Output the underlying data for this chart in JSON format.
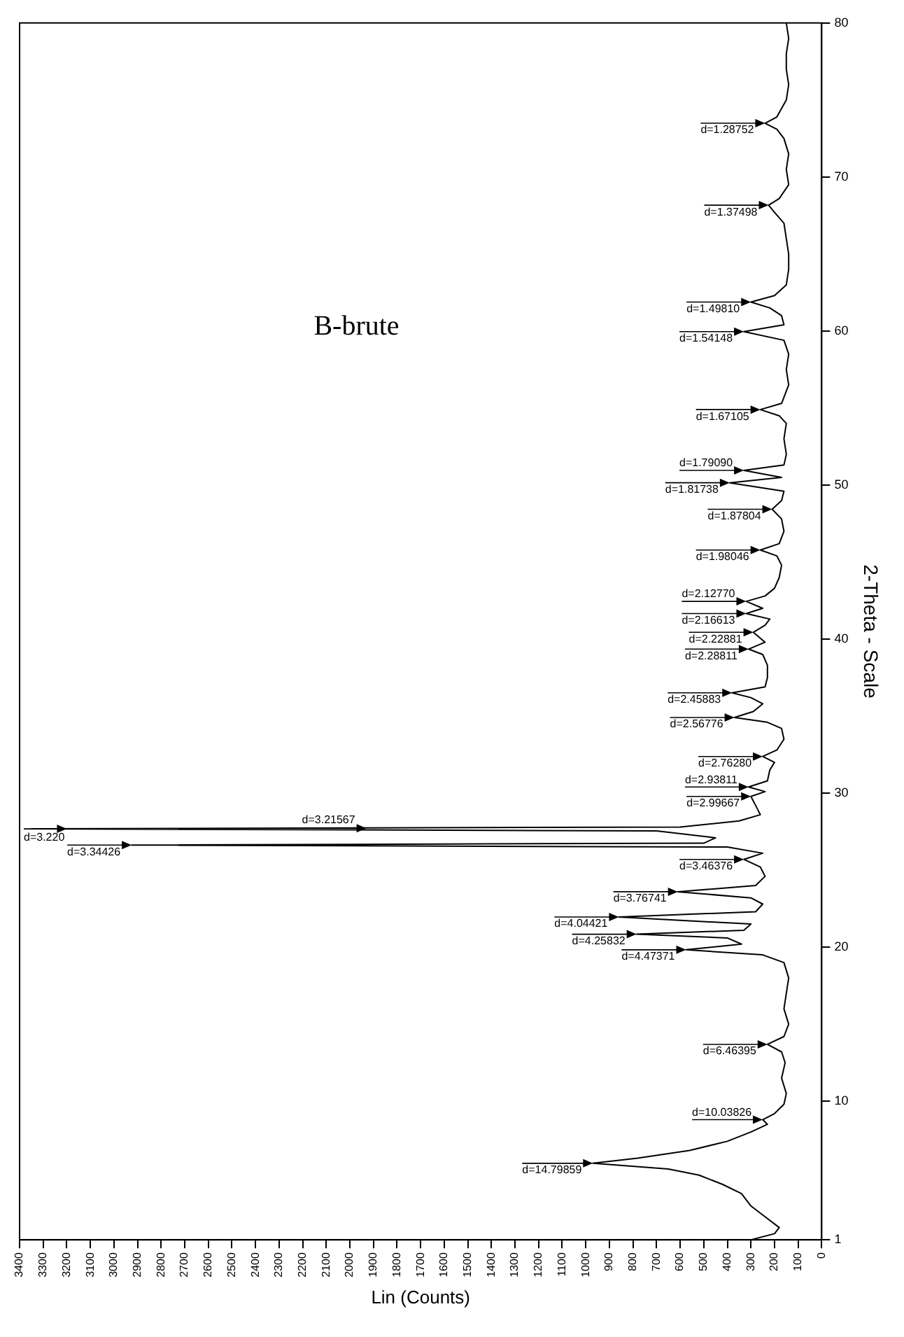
{
  "chart_data": {
    "type": "line",
    "xlabel": "Lin (Counts)",
    "ylabel": "2-Theta - Scale",
    "xlim": [
      3400,
      0
    ],
    "xticks": [
      0,
      100,
      200,
      300,
      400,
      500,
      600,
      700,
      800,
      900,
      1000,
      1100,
      1200,
      1300,
      1400,
      1500,
      1600,
      1700,
      1800,
      1900,
      2000,
      2100,
      2200,
      2300,
      2400,
      2500,
      2600,
      2700,
      2800,
      2900,
      3000,
      3100,
      3200,
      3300,
      3400
    ],
    "ylim": [
      1,
      80
    ],
    "yticks": [
      1,
      10,
      20,
      30,
      40,
      50,
      60,
      70,
      80
    ],
    "grid": false,
    "series": [
      {
        "color": "#000000",
        "values": [
          1.0,
          1.4,
          1.8,
          2.5,
          3.2,
          4.0,
          4.6,
          5.2,
          5.6,
          5.97,
          6.3,
          6.8,
          7.4,
          8.0,
          8.5,
          8.8,
          9.2,
          9.8,
          10.5,
          11.5,
          12.5,
          13.2,
          13.69,
          14.2,
          15.0,
          16.0,
          17.0,
          18.0,
          19.0,
          19.5,
          19.83,
          20.2,
          20.6,
          20.84,
          21.1,
          21.5,
          21.96,
          22.3,
          22.8,
          23.2,
          23.6,
          24.0,
          24.6,
          25.2,
          25.7,
          26.1,
          26.5,
          26.63,
          26.75,
          27.1,
          27.55,
          27.68,
          27.8,
          28.2,
          28.6,
          29.2,
          29.79,
          30.1,
          30.4,
          30.8,
          31.5,
          32.0,
          32.38,
          32.8,
          33.5,
          34.2,
          34.6,
          34.91,
          35.3,
          35.8,
          36.2,
          36.51,
          36.9,
          37.5,
          38.3,
          39.0,
          39.35,
          39.8,
          40.44,
          40.9,
          41.3,
          41.66,
          42.0,
          42.45,
          42.8,
          43.3,
          44.0,
          44.8,
          45.4,
          45.78,
          46.2,
          47.0,
          47.8,
          48.43,
          49.0,
          49.6,
          50.15,
          50.5,
          50.95,
          51.3,
          52.0,
          53.0,
          54.0,
          54.5,
          54.9,
          55.3,
          56.5,
          57.5,
          58.5,
          59.4,
          59.96,
          60.4,
          61.0,
          61.5,
          61.88,
          62.3,
          63.0,
          64.0,
          65.0,
          66.0,
          67.0,
          67.7,
          68.17,
          68.6,
          69.5,
          70.5,
          71.5,
          72.5,
          73.1,
          73.49,
          73.9,
          75.0,
          76.0,
          77.0,
          78.0,
          79.0,
          80.0
        ],
        "x": [
          300,
          200,
          180,
          240,
          300,
          340,
          420,
          520,
          650,
          970,
          780,
          560,
          400,
          300,
          230,
          250,
          200,
          160,
          150,
          170,
          155,
          170,
          230,
          160,
          140,
          160,
          150,
          140,
          160,
          250,
          575,
          340,
          400,
          785,
          330,
          300,
          860,
          280,
          250,
          300,
          610,
          280,
          240,
          260,
          330,
          250,
          400,
          2925,
          500,
          450,
          700,
          3350,
          600,
          350,
          260,
          280,
          300,
          240,
          310,
          230,
          220,
          200,
          250,
          190,
          160,
          170,
          230,
          370,
          290,
          250,
          300,
          380,
          240,
          230,
          230,
          250,
          310,
          240,
          290,
          240,
          220,
          320,
          250,
          320,
          240,
          200,
          180,
          170,
          190,
          260,
          180,
          160,
          170,
          210,
          170,
          160,
          390,
          170,
          330,
          160,
          150,
          160,
          150,
          180,
          260,
          170,
          140,
          150,
          140,
          160,
          330,
          160,
          170,
          220,
          300,
          200,
          150,
          140,
          140,
          150,
          160,
          200,
          225,
          180,
          140,
          150,
          140,
          160,
          190,
          240,
          190,
          150,
          140,
          150,
          150,
          140,
          150
        ]
      }
    ],
    "annotations": [
      "B-brute",
      {
        "text": "d=14.79859",
        "x": 970,
        "y": 5.97
      },
      {
        "text": "d=10.03826",
        "x": 250,
        "y": 8.8
      },
      {
        "text": "d=6.46395",
        "x": 230,
        "y": 13.69
      },
      {
        "text": "d=4.47371",
        "x": 575,
        "y": 19.83
      },
      {
        "text": "d=4.25832",
        "x": 785,
        "y": 20.84
      },
      {
        "text": "d=4.04421",
        "x": 860,
        "y": 21.96
      },
      {
        "text": "d=3.76741",
        "x": 610,
        "y": 23.6
      },
      {
        "text": "d=3.46376",
        "x": 330,
        "y": 25.7
      },
      {
        "text": "d=3.34426",
        "x": 2925,
        "y": 26.63
      },
      {
        "text": "d=3.21567",
        "x": 1930,
        "y": 27.72
      },
      {
        "text": "d=3.220",
        "x": 3200,
        "y": 27.68
      },
      {
        "text": "d=2.99667",
        "x": 300,
        "y": 29.79
      },
      {
        "text": "d=2.93811",
        "x": 310,
        "y": 30.4
      },
      {
        "text": "d=2.76280",
        "x": 250,
        "y": 32.38
      },
      {
        "text": "d=2.56776",
        "x": 370,
        "y": 34.91
      },
      {
        "text": "d=2.45883",
        "x": 380,
        "y": 36.51
      },
      {
        "text": "d=2.28811",
        "x": 310,
        "y": 39.35
      },
      {
        "text": "d=2.22881",
        "x": 290,
        "y": 40.44
      },
      {
        "text": "d=2.16613",
        "x": 320,
        "y": 41.66
      },
      {
        "text": "d=2.12770",
        "x": 320,
        "y": 42.45
      },
      {
        "text": "d=1.98046",
        "x": 260,
        "y": 45.78
      },
      {
        "text": "d=1.87804",
        "x": 210,
        "y": 48.43
      },
      {
        "text": "d=1.81738",
        "x": 390,
        "y": 50.15
      },
      {
        "text": "d=1.79090",
        "x": 330,
        "y": 50.95
      },
      {
        "text": "d=1.67105",
        "x": 260,
        "y": 54.9
      },
      {
        "text": "d=1.54148",
        "x": 330,
        "y": 59.96
      },
      {
        "text": "d=1.49810",
        "x": 300,
        "y": 61.88
      },
      {
        "text": "d=1.37498",
        "x": 225,
        "y": 68.17
      },
      {
        "text": "d=1.28752",
        "x": 240,
        "y": 73.49
      }
    ]
  }
}
